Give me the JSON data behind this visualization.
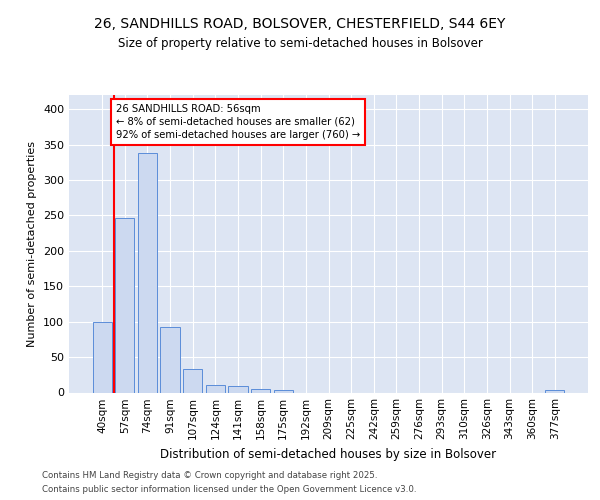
{
  "title_line1": "26, SANDHILLS ROAD, BOLSOVER, CHESTERFIELD, S44 6EY",
  "title_line2": "Size of property relative to semi-detached houses in Bolsover",
  "xlabel": "Distribution of semi-detached houses by size in Bolsover",
  "ylabel": "Number of semi-detached properties",
  "categories": [
    "40sqm",
    "57sqm",
    "74sqm",
    "91sqm",
    "107sqm",
    "124sqm",
    "141sqm",
    "158sqm",
    "175sqm",
    "192sqm",
    "209sqm",
    "225sqm",
    "242sqm",
    "259sqm",
    "276sqm",
    "293sqm",
    "310sqm",
    "326sqm",
    "343sqm",
    "360sqm",
    "377sqm"
  ],
  "values": [
    100,
    247,
    338,
    92,
    33,
    10,
    9,
    5,
    3,
    0,
    0,
    0,
    0,
    0,
    0,
    0,
    0,
    0,
    0,
    0,
    3
  ],
  "bar_color": "#ccd9f0",
  "bar_edge_color": "#5b8dd9",
  "annotation_text": "26 SANDHILLS ROAD: 56sqm\n← 8% of semi-detached houses are smaller (62)\n92% of semi-detached houses are larger (760) →",
  "ylim": [
    0,
    420
  ],
  "yticks": [
    0,
    50,
    100,
    150,
    200,
    250,
    300,
    350,
    400
  ],
  "footer_line1": "Contains HM Land Registry data © Crown copyright and database right 2025.",
  "footer_line2": "Contains public sector information licensed under the Open Government Licence v3.0.",
  "plot_bg_color": "#dde5f3"
}
